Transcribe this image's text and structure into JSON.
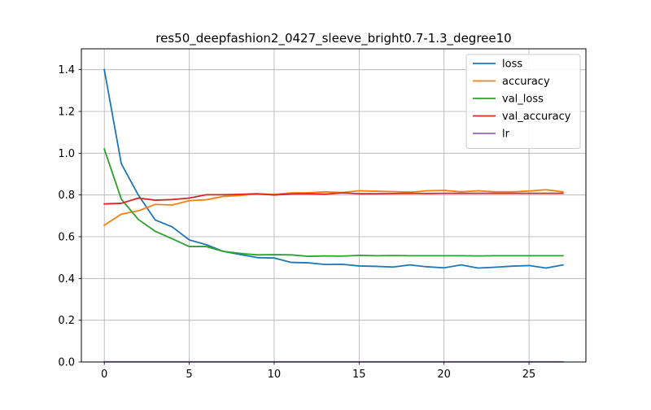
{
  "chart_data": {
    "type": "line",
    "title": "res50_deepfashion2_0427_sleeve_bright0.7-1.3_degree10",
    "xlabel": "",
    "ylabel": "",
    "xlim": [
      -1.35,
      28.35
    ],
    "ylim": [
      0,
      1.5
    ],
    "xticks": [
      0,
      5,
      10,
      15,
      20,
      25
    ],
    "yticks": [
      0.0,
      0.2,
      0.4,
      0.6,
      0.8,
      1.0,
      1.2,
      1.4
    ],
    "xtick_labels": [
      "0",
      "5",
      "10",
      "15",
      "20",
      "25"
    ],
    "ytick_labels": [
      "0.0",
      "0.2",
      "0.4",
      "0.6",
      "0.8",
      "1.0",
      "1.2",
      "1.4"
    ],
    "grid": true,
    "legend_position": "top-right",
    "x": [
      0,
      1,
      2,
      3,
      4,
      5,
      6,
      7,
      8,
      9,
      10,
      11,
      12,
      13,
      14,
      15,
      16,
      17,
      18,
      19,
      20,
      21,
      22,
      23,
      24,
      25,
      26,
      27
    ],
    "series": [
      {
        "name": "loss",
        "color": "#1f77b4",
        "values": [
          1.4,
          0.95,
          0.8,
          0.68,
          0.647,
          0.585,
          0.562,
          0.53,
          0.515,
          0.5,
          0.498,
          0.477,
          0.475,
          0.467,
          0.468,
          0.46,
          0.458,
          0.455,
          0.465,
          0.456,
          0.451,
          0.465,
          0.45,
          0.454,
          0.459,
          0.462,
          0.45,
          0.465
        ]
      },
      {
        "name": "accuracy",
        "color": "#ff7f0e",
        "values": [
          0.655,
          0.708,
          0.724,
          0.755,
          0.752,
          0.773,
          0.777,
          0.793,
          0.798,
          0.805,
          0.803,
          0.81,
          0.811,
          0.815,
          0.812,
          0.82,
          0.818,
          0.816,
          0.813,
          0.82,
          0.822,
          0.815,
          0.82,
          0.815,
          0.815,
          0.819,
          0.825,
          0.815
        ]
      },
      {
        "name": "val_loss",
        "color": "#2ca02c",
        "values": [
          1.02,
          0.78,
          0.683,
          0.626,
          0.59,
          0.553,
          0.553,
          0.53,
          0.52,
          0.513,
          0.514,
          0.513,
          0.506,
          0.508,
          0.507,
          0.511,
          0.509,
          0.51,
          0.509,
          0.509,
          0.509,
          0.509,
          0.508,
          0.509,
          0.509,
          0.509,
          0.509,
          0.509
        ]
      },
      {
        "name": "val_accuracy",
        "color": "#d62728",
        "values": [
          0.757,
          0.76,
          0.785,
          0.775,
          0.778,
          0.785,
          0.801,
          0.801,
          0.803,
          0.806,
          0.8,
          0.805,
          0.806,
          0.804,
          0.81,
          0.806,
          0.806,
          0.807,
          0.808,
          0.807,
          0.808,
          0.808,
          0.808,
          0.808,
          0.808,
          0.808,
          0.808,
          0.808
        ]
      },
      {
        "name": "lr",
        "color": "#9467bd",
        "values": [
          0.001,
          0.001,
          0.001,
          0.001,
          0.001,
          0.001,
          0.001,
          0.001,
          0.001,
          0.001,
          0.001,
          0.001,
          0.001,
          0.001,
          0.001,
          0.001,
          0.001,
          0.001,
          0.001,
          0.001,
          0.001,
          0.001,
          0.001,
          0.001,
          0.001,
          0.001,
          0.001,
          0.001
        ]
      }
    ]
  }
}
